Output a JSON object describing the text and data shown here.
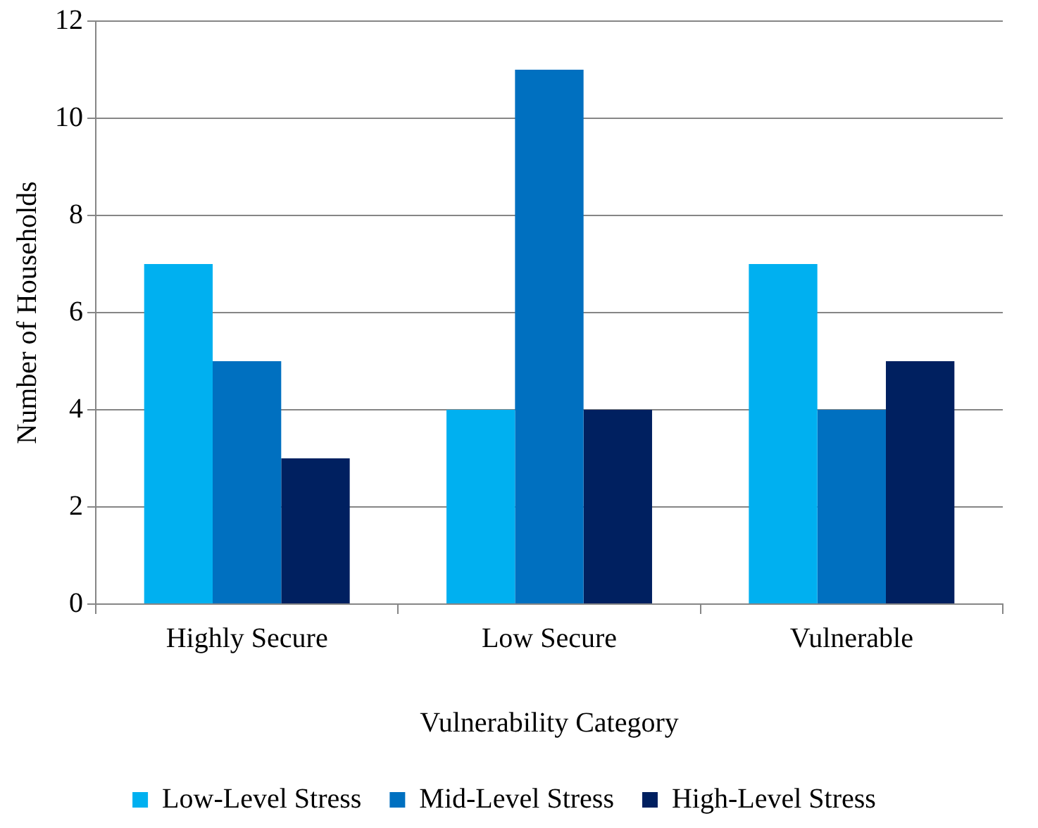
{
  "chart_data": {
    "type": "bar",
    "xlabel": "Vulnerability Category",
    "ylabel": "Number of Households",
    "categories": [
      "Highly Secure",
      "Low Secure",
      "Vulnerable"
    ],
    "series": [
      {
        "name": "Low-Level Stress",
        "color": "#00b0f0",
        "values": [
          7,
          4,
          7
        ]
      },
      {
        "name": "Mid-Level Stress",
        "color": "#0070c0",
        "values": [
          5,
          11,
          4
        ]
      },
      {
        "name": "High-Level Stress",
        "color": "#002060",
        "values": [
          3,
          4,
          5
        ]
      }
    ],
    "ylim": [
      0,
      12
    ],
    "yticks": [
      0,
      2,
      4,
      6,
      8,
      10,
      12
    ],
    "grid": "y",
    "legend": "bottom"
  }
}
